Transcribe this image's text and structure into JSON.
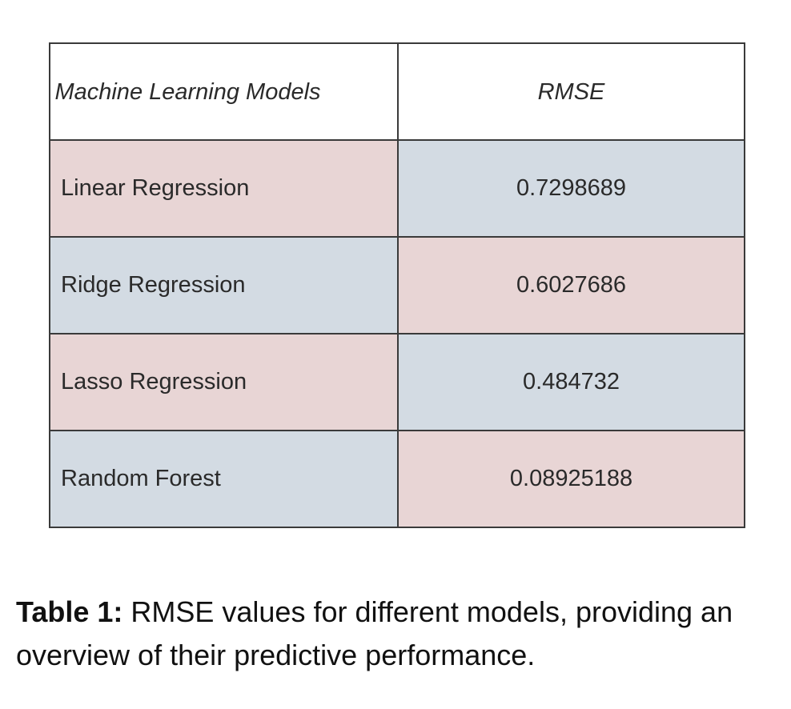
{
  "table": {
    "headers": [
      "Machine Learning Models",
      "RMSE"
    ],
    "rows": [
      {
        "model": "Linear Regression",
        "rmse": "0.7298689"
      },
      {
        "model": "Ridge Regression",
        "rmse": "0.6027686"
      },
      {
        "model": "Lasso Regression",
        "rmse": "0.484732"
      },
      {
        "model": "Random Forest",
        "rmse": "0.08925188"
      }
    ],
    "cell_colors": {
      "pink": "#e8d5d5",
      "blue": "#d3dbe3"
    }
  },
  "caption": {
    "label": "Table 1:",
    "text": " RMSE values for different models, providing an overview of their predictive performance."
  }
}
